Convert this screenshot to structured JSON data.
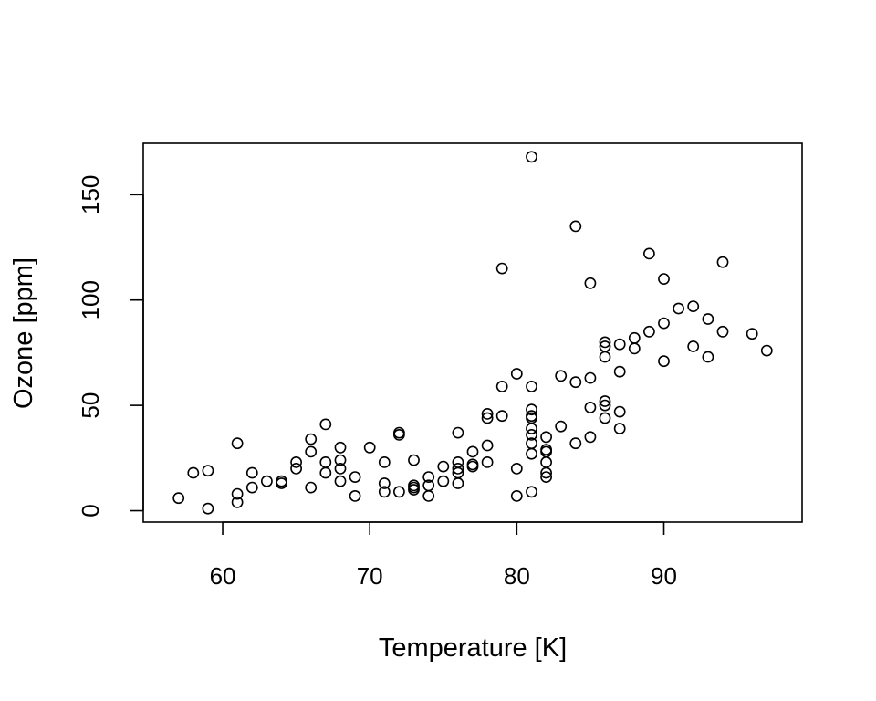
{
  "chart_data": {
    "type": "scatter",
    "title": "",
    "xlabel": "Temperature [K]",
    "ylabel": "Ozone [ppm]",
    "xlim": [
      54.6,
      99.4
    ],
    "ylim": [
      -5.4,
      174.4
    ],
    "x_ticks": [
      60,
      70,
      80,
      90
    ],
    "x_tick_labels": [
      "60",
      "70",
      "80",
      "90"
    ],
    "y_ticks": [
      0,
      50,
      100,
      150
    ],
    "y_tick_labels": [
      "0",
      "50",
      "100",
      "150"
    ],
    "grid": false,
    "legend": "none",
    "marker": "open-circle",
    "colors": {
      "points": "#000000",
      "axes": "#000000",
      "background": "#ffffff"
    },
    "points": [
      [
        57,
        6
      ],
      [
        58,
        18
      ],
      [
        59,
        1
      ],
      [
        59,
        19
      ],
      [
        61,
        4
      ],
      [
        61,
        8
      ],
      [
        61,
        32
      ],
      [
        62,
        11
      ],
      [
        62,
        18
      ],
      [
        63,
        14
      ],
      [
        64,
        13
      ],
      [
        64,
        14
      ],
      [
        65,
        20
      ],
      [
        65,
        23
      ],
      [
        66,
        11
      ],
      [
        66,
        28
      ],
      [
        66,
        34
      ],
      [
        67,
        18
      ],
      [
        67,
        23
      ],
      [
        67,
        41
      ],
      [
        68,
        14
      ],
      [
        68,
        20
      ],
      [
        68,
        24
      ],
      [
        68,
        30
      ],
      [
        69,
        7
      ],
      [
        69,
        16
      ],
      [
        70,
        30
      ],
      [
        71,
        9
      ],
      [
        71,
        13
      ],
      [
        71,
        23
      ],
      [
        72,
        9
      ],
      [
        72,
        36
      ],
      [
        72,
        37
      ],
      [
        73,
        10
      ],
      [
        73,
        11
      ],
      [
        73,
        12
      ],
      [
        73,
        24
      ],
      [
        74,
        7
      ],
      [
        74,
        12
      ],
      [
        74,
        16
      ],
      [
        75,
        14
      ],
      [
        75,
        21
      ],
      [
        76,
        13
      ],
      [
        76,
        18
      ],
      [
        76,
        20
      ],
      [
        76,
        23
      ],
      [
        76,
        37
      ],
      [
        77,
        21
      ],
      [
        77,
        22
      ],
      [
        77,
        28
      ],
      [
        78,
        23
      ],
      [
        78,
        31
      ],
      [
        78,
        44
      ],
      [
        78,
        46
      ],
      [
        79,
        45
      ],
      [
        79,
        59
      ],
      [
        79,
        115
      ],
      [
        80,
        7
      ],
      [
        80,
        20
      ],
      [
        80,
        65
      ],
      [
        81,
        9
      ],
      [
        81,
        27
      ],
      [
        81,
        32
      ],
      [
        81,
        36
      ],
      [
        81,
        39
      ],
      [
        81,
        44
      ],
      [
        81,
        45
      ],
      [
        81,
        48
      ],
      [
        81,
        59
      ],
      [
        81,
        168
      ],
      [
        82,
        16
      ],
      [
        82,
        18
      ],
      [
        82,
        23
      ],
      [
        82,
        28
      ],
      [
        82,
        29
      ],
      [
        82,
        35
      ],
      [
        83,
        40
      ],
      [
        83,
        64
      ],
      [
        84,
        32
      ],
      [
        84,
        61
      ],
      [
        84,
        135
      ],
      [
        85,
        35
      ],
      [
        85,
        49
      ],
      [
        85,
        63
      ],
      [
        85,
        108
      ],
      [
        86,
        44
      ],
      [
        86,
        50
      ],
      [
        86,
        52
      ],
      [
        86,
        73
      ],
      [
        86,
        78
      ],
      [
        86,
        80
      ],
      [
        87,
        39
      ],
      [
        87,
        47
      ],
      [
        87,
        66
      ],
      [
        87,
        79
      ],
      [
        88,
        77
      ],
      [
        88,
        82
      ],
      [
        89,
        85
      ],
      [
        89,
        122
      ],
      [
        90,
        71
      ],
      [
        90,
        89
      ],
      [
        90,
        110
      ],
      [
        91,
        96
      ],
      [
        92,
        78
      ],
      [
        92,
        97
      ],
      [
        93,
        73
      ],
      [
        93,
        91
      ],
      [
        94,
        85
      ],
      [
        94,
        118
      ],
      [
        96,
        84
      ],
      [
        97,
        76
      ]
    ]
  }
}
